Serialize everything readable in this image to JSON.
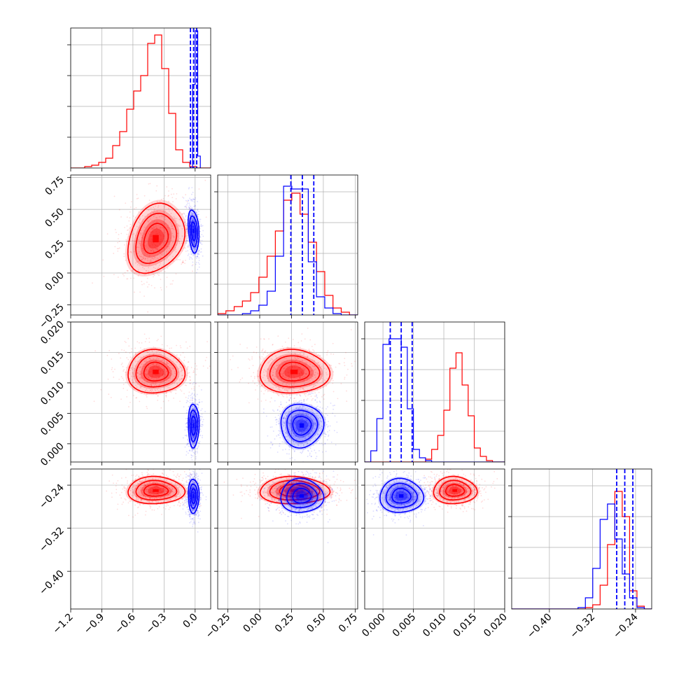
{
  "chart_data": {
    "type": "corner",
    "grid": true,
    "colors": {
      "A": "#ff0000",
      "B": "#0000ff"
    },
    "series": [
      {
        "color": "#ff0000"
      },
      {
        "color": "#0000ff"
      }
    ],
    "params": [
      {
        "range": [
          -1.2,
          0.15
        ],
        "tick_labels": [
          "−1.2",
          "−0.9",
          "−0.6",
          "−0.3",
          "0.0"
        ],
        "ticks": [
          -1.2,
          -0.9,
          -0.6,
          -0.3,
          0.0
        ],
        "A": {
          "mean": -0.38,
          "sd": 0.13
        },
        "B": {
          "mean": -0.015,
          "sd": 0.025
        },
        "hist_A": [
          0.0,
          0.0,
          0.01,
          0.02,
          0.04,
          0.07,
          0.16,
          0.26,
          0.42,
          0.55,
          0.66,
          0.89,
          0.95,
          0.71,
          0.39,
          0.13,
          0.04,
          0.01,
          0.0,
          0.0
        ],
        "hist_B": [
          0.0,
          1.4,
          2.3,
          0.2
        ],
        "hist_B_bins": [
          -0.05,
          -0.025,
          0.0,
          0.025,
          0.05
        ],
        "quantiles_B": [
          -0.045,
          -0.015,
          0.015
        ]
      },
      {
        "range": [
          -0.33,
          0.77
        ],
        "tick_labels": [
          "−0.25",
          "0.00",
          "0.25",
          "0.50",
          "0.75"
        ],
        "ticks": [
          -0.25,
          0.0,
          0.25,
          0.5,
          0.75
        ],
        "A": {
          "mean": 0.27,
          "sd": 0.13
        },
        "B": {
          "mean": 0.33,
          "sd": 0.08
        },
        "hist_A": [
          0.01,
          0.03,
          0.06,
          0.1,
          0.16,
          0.27,
          0.42,
          0.6,
          0.82,
          0.87,
          0.72,
          0.52,
          0.31,
          0.14,
          0.05,
          0.02,
          0.0
        ],
        "hist_B": [
          0.0,
          0.0,
          0.0,
          0.01,
          0.03,
          0.07,
          0.17,
          0.42,
          0.92,
          0.9,
          0.9,
          0.38,
          0.13,
          0.05,
          0.01,
          0.0,
          0.0
        ],
        "quantiles_B": [
          0.245,
          0.335,
          0.425
        ]
      },
      {
        "range": [
          -0.003,
          0.02
        ],
        "tick_labels": [
          "0.000",
          "0.005",
          "0.010",
          "0.015",
          "0.020"
        ],
        "ticks": [
          0.0,
          0.005,
          0.01,
          0.015,
          0.02
        ],
        "A": {
          "mean": 0.0118,
          "sd": 0.0017
        },
        "B": {
          "mean": 0.003,
          "sd": 0.0017
        },
        "hist_A": [
          0.0,
          0.0,
          0.0,
          0.0,
          0.0,
          0.0,
          0.0,
          0.0,
          0.0,
          0.0,
          0.02,
          0.09,
          0.19,
          0.37,
          0.67,
          0.78,
          0.55,
          0.33,
          0.1,
          0.04,
          0.01,
          0.0,
          0.0
        ],
        "hist_B": [
          0.0,
          0.08,
          0.31,
          0.84,
          0.88,
          0.88,
          0.82,
          0.38,
          0.09,
          0.03,
          0.01,
          0.0,
          0.0,
          0.0,
          0.0,
          0.0,
          0.0,
          0.0,
          0.0,
          0.0,
          0.0,
          0.0,
          0.0
        ],
        "quantiles_B": [
          0.0012,
          0.003,
          0.0048
        ]
      },
      {
        "range": [
          -0.47,
          -0.21
        ],
        "tick_labels": [
          "−0.40",
          "−0.32",
          "−0.24"
        ],
        "ticks": [
          -0.4,
          -0.32,
          -0.24
        ],
        "A": {
          "mean": -0.25,
          "sd": 0.012
        },
        "B": {
          "mean": -0.26,
          "sd": 0.015
        },
        "hist_A": [
          0.0,
          0.0,
          0.0,
          0.0,
          0.0,
          0.0,
          0.0,
          0.0,
          0.0,
          0.0,
          0.01,
          0.03,
          0.17,
          0.46,
          0.84,
          0.66,
          0.13,
          0.02,
          0.0
        ],
        "hist_B": [
          0.0,
          0.0,
          0.0,
          0.0,
          0.0,
          0.0,
          0.0,
          0.0,
          0.0,
          0.01,
          0.08,
          0.29,
          0.64,
          0.75,
          0.5,
          0.25,
          0.08,
          0.01,
          0.0
        ],
        "quantiles_B": [
          -0.275,
          -0.26,
          -0.245
        ]
      }
    ],
    "y_tick_params": {
      "1": {
        "tick_labels": [
          "−0.25",
          "0.00",
          "0.25",
          "0.50",
          "0.75"
        ],
        "ticks": [
          -0.25,
          0.0,
          0.25,
          0.5,
          0.75
        ]
      },
      "2": {
        "tick_labels": [
          "0.000",
          "0.005",
          "0.010",
          "0.015",
          "0.020"
        ],
        "ticks": [
          0.0,
          0.005,
          0.01,
          0.015,
          0.02
        ]
      },
      "3": {
        "tick_labels": [
          "−0.40",
          "−0.32",
          "−0.24"
        ],
        "ticks": [
          -0.4,
          -0.32,
          -0.24
        ]
      }
    },
    "correlations": {
      "A": {
        "0-1": 0.25,
        "0-2": 0.0,
        "0-3": 0.0,
        "1-2": 0.0,
        "1-3": 0.0,
        "2-3": 0.0
      },
      "B": {
        "0-1": -0.25,
        "0-2": 0.0,
        "0-3": 0.0,
        "1-2": 0.0,
        "1-3": 0.0,
        "2-3": 0.0
      }
    }
  }
}
